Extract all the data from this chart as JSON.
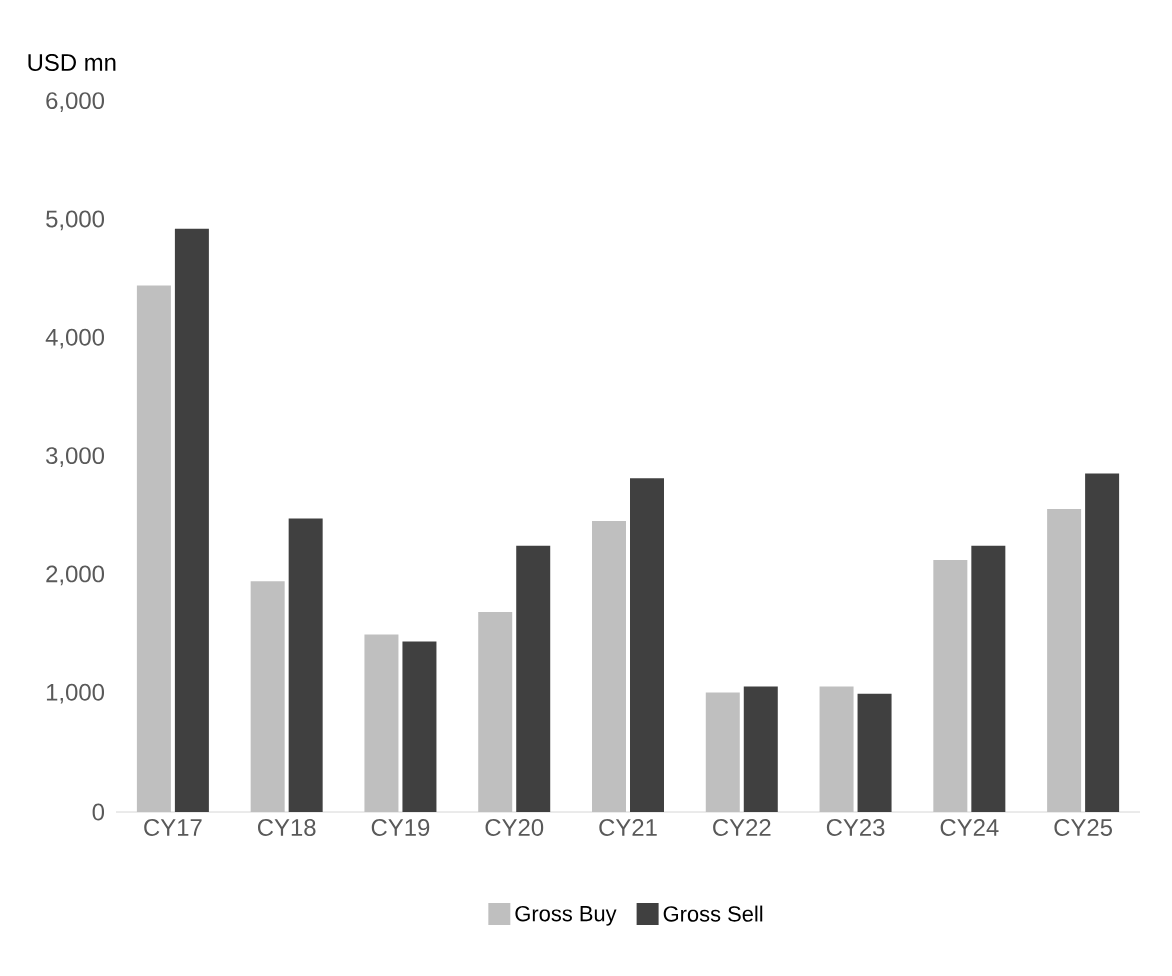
{
  "chart_data": {
    "type": "bar",
    "ylabel": "USD mn",
    "categories": [
      "CY17",
      "CY18",
      "CY19",
      "CY20",
      "CY21",
      "CY22",
      "CY23",
      "CY24",
      "CY25"
    ],
    "series": [
      {
        "name": "Gross Buy",
        "color": "#bfbfbf",
        "values": [
          4450,
          1950,
          1500,
          1690,
          2460,
          1010,
          1060,
          2130,
          2560
        ]
      },
      {
        "name": "Gross Sell",
        "color": "#404040",
        "values": [
          4930,
          2480,
          1440,
          2250,
          2820,
          1060,
          1000,
          2250,
          2860
        ]
      }
    ],
    "ylim": [
      0,
      6000
    ],
    "yticks": [
      0,
      {
        "value": 1000,
        "label": "1,000"
      },
      {
        "value": 2000,
        "label": "2,000"
      },
      {
        "value": 3000,
        "label": "3,000"
      },
      {
        "value": 4000,
        "label": "4,000"
      },
      {
        "value": 5000,
        "label": "5,000"
      },
      {
        "value": 6000,
        "label": "6,000"
      }
    ],
    "legend": "bottom"
  }
}
